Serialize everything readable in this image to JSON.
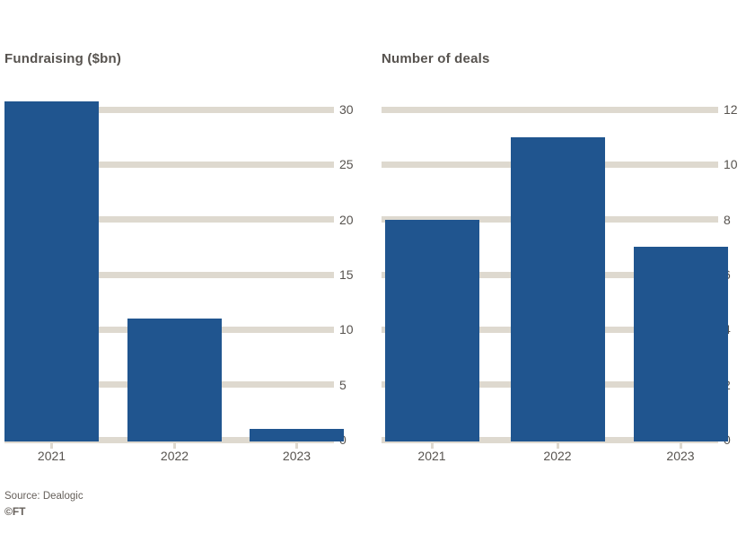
{
  "colors": {
    "background": "#ffffff",
    "bar": "#20558f",
    "gridline": "#ded9cf",
    "title_text": "#57534f",
    "tick_text": "#57534f",
    "source_text": "#66605b"
  },
  "source": {
    "line1": "Source: Dealogic",
    "line2": "©FT"
  },
  "chart_data": [
    {
      "type": "bar",
      "title": "Fundraising ($bn)",
      "categories": [
        "2021",
        "2022",
        "2023"
      ],
      "values": [
        30.7,
        11,
        1
      ],
      "xlabel": "",
      "ylabel": "",
      "ylim": [
        0,
        30
      ],
      "yticks": [
        0,
        5,
        10,
        15,
        20,
        25,
        30
      ],
      "grid": true,
      "tick_side": "right",
      "legend_position": "none"
    },
    {
      "type": "bar",
      "title": "Number of deals",
      "categories": [
        "2021",
        "2022",
        "2023"
      ],
      "values": [
        8,
        11,
        7
      ],
      "xlabel": "",
      "ylabel": "",
      "ylim": [
        0,
        12
      ],
      "yticks": [
        0,
        2,
        4,
        6,
        8,
        10,
        12
      ],
      "grid": true,
      "tick_side": "right",
      "legend_position": "none"
    }
  ]
}
